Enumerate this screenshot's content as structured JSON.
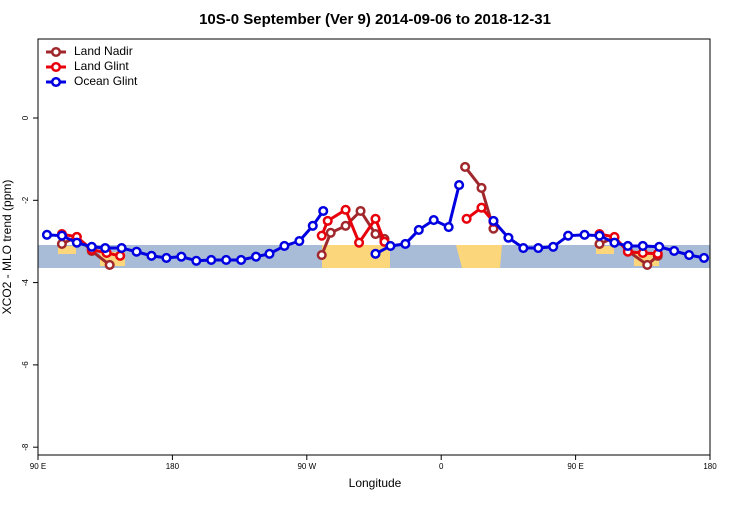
{
  "chart_data": {
    "type": "line",
    "title": "10S-0 September (Ver 9)   2014-09-06 to 2018-12-31",
    "x_label": "Longitude",
    "y_label": "XCO2 - MLO trend (ppm)",
    "xlim": [
      90,
      540
    ],
    "xticks": [
      {
        "value": 90,
        "label": "90 E"
      },
      {
        "value": 180,
        "label": "180"
      },
      {
        "value": 270,
        "label": "90 W"
      },
      {
        "value": 360,
        "label": "0"
      },
      {
        "value": 450,
        "label": "90 E"
      },
      {
        "value": 540,
        "label": "180"
      }
    ],
    "ylim": [
      -8.19,
      1.92
    ],
    "yticks": [
      0,
      -2,
      -4,
      -6,
      -8
    ],
    "legend": "top-left",
    "series": [
      {
        "name": "Land Nadir",
        "color": "#a0282c",
        "x": [
          106,
          116,
          126,
          138,
          null,
          280,
          286,
          296,
          306,
          316,
          322,
          null,
          376,
          387,
          395,
          null,
          466,
          476,
          485,
          498,
          505
        ],
        "values": [
          -3.06,
          -2.89,
          -3.23,
          -3.57,
          null,
          -3.33,
          -2.79,
          -2.62,
          -2.26,
          -2.82,
          -2.94,
          null,
          -1.19,
          -1.7,
          -2.69,
          null,
          -3.06,
          -2.91,
          -3.23,
          -3.57,
          -3.35
        ]
      },
      {
        "name": "Land Glint",
        "color": "#e8000b",
        "x": [
          106,
          116,
          126,
          136,
          145,
          null,
          280,
          284,
          296,
          305,
          316,
          322,
          null,
          377,
          387,
          395,
          null,
          466,
          476,
          485,
          495,
          505
        ],
        "values": [
          -2.82,
          -2.89,
          -3.2,
          -3.28,
          -3.35,
          null,
          -2.86,
          -2.5,
          -2.23,
          -3.03,
          -2.45,
          -3.01,
          null,
          -2.45,
          -2.18,
          -2.52,
          null,
          -2.82,
          -2.89,
          -3.25,
          -3.28,
          -3.3
        ]
      },
      {
        "name": "Ocean Glint",
        "color": "#0000e0",
        "x": [
          96,
          106,
          116,
          126,
          135,
          146,
          156,
          166,
          176,
          186,
          196,
          206,
          216,
          226,
          236,
          245,
          255,
          265,
          274,
          281,
          null,
          316,
          326,
          336,
          345,
          355,
          365,
          372,
          null,
          395,
          405,
          415,
          425,
          435,
          445,
          456,
          466,
          476,
          485,
          495,
          506,
          516,
          526,
          536
        ],
        "values": [
          -2.84,
          -2.86,
          -3.03,
          -3.13,
          -3.16,
          -3.16,
          -3.25,
          -3.35,
          -3.4,
          -3.37,
          -3.47,
          -3.45,
          -3.45,
          -3.45,
          -3.37,
          -3.3,
          -3.11,
          -2.99,
          -2.62,
          -2.26,
          null,
          -3.3,
          -3.11,
          -3.06,
          -2.72,
          -2.48,
          -2.65,
          -1.63,
          null,
          -2.5,
          -2.91,
          -3.16,
          -3.16,
          -3.13,
          -2.86,
          -2.84,
          -2.86,
          -3.03,
          -3.11,
          -3.11,
          -3.13,
          -3.23,
          -3.33,
          -3.4
        ]
      }
    ]
  }
}
